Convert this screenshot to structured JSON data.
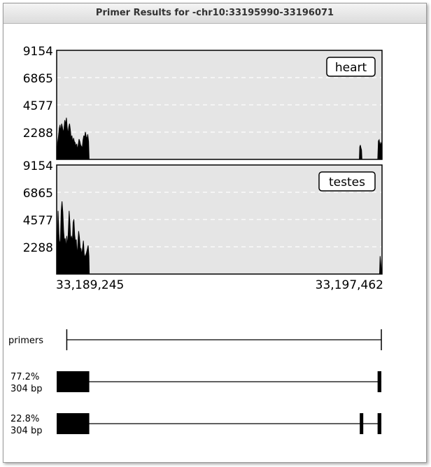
{
  "window": {
    "title": "Primer Results for -chr10:33195990-33196071"
  },
  "colors": {
    "panel_bg": "#e5e5e5",
    "fill": "#000000",
    "grid": "#ffffff"
  },
  "chart_data": {
    "type": "area",
    "panels": [
      {
        "label": "heart",
        "ylim": [
          0,
          9154
        ],
        "yticks": [
          "9154",
          "6865",
          "4577",
          "2288"
        ],
        "ytick_values": [
          9154,
          6865,
          4577,
          2288
        ],
        "clusters": [
          {
            "x": [
              33189245,
              33189270,
              33189290,
              33189310,
              33189330,
              33189350,
              33189370,
              33189390,
              33189410,
              33189430,
              33189450,
              33189470,
              33189490,
              33189510,
              33189530,
              33189550,
              33189570,
              33189590,
              33189610,
              33189630,
              33189650,
              33189670,
              33189690,
              33189710,
              33189730,
              33189750,
              33189770,
              33189790,
              33189810,
              33189830,
              33189850,
              33189870,
              33189890,
              33189910,
              33189930,
              33189950,
              33189970,
              33189990,
              33190010,
              33190030,
              33190050,
              33190065
            ],
            "y": [
              0,
              1400,
              1900,
              2600,
              2900,
              2300,
              3000,
              2700,
              2200,
              2600,
              3300,
              2900,
              3500,
              2700,
              2100,
              2700,
              3000,
              2500,
              1700,
              2000,
              1400,
              1800,
              1500,
              1400,
              1100,
              1300,
              800,
              1200,
              1700,
              1500,
              1200,
              1100,
              900,
              1600,
              2000,
              1800,
              2300,
              1900,
              1700,
              2100,
              1500,
              0
            ]
          },
          {
            "x": [
              33196890,
              33196900,
              33196915,
              33196930,
              33196945,
              33196955
            ],
            "y": [
              0,
              1050,
              1200,
              950,
              800,
              0
            ]
          },
          {
            "x": [
              33197355,
              33197370,
              33197390,
              33197410,
              33197430,
              33197445,
              33197462
            ],
            "y": [
              0,
              1550,
              1650,
              1100,
              1400,
              1300,
              0
            ]
          }
        ]
      },
      {
        "label": "testes",
        "ylim": [
          0,
          9154
        ],
        "yticks": [
          "9154",
          "6865",
          "4577",
          "2288"
        ],
        "ytick_values": [
          9154,
          6865,
          4577,
          2288
        ],
        "clusters": [
          {
            "x": [
              33189245,
              33189260,
              33189280,
              33189300,
              33189320,
              33189340,
              33189360,
              33189380,
              33189400,
              33189420,
              33189440,
              33189460,
              33189480,
              33189500,
              33189520,
              33189540,
              33189560,
              33189580,
              33189600,
              33189620,
              33189640,
              33189660,
              33189680,
              33189700,
              33189720,
              33189740,
              33189760,
              33189780,
              33189800,
              33189820,
              33189840,
              33189860,
              33189880,
              33189900,
              33189920,
              33189940,
              33189960,
              33189980,
              33190000,
              33190020,
              33190040,
              33190060,
              33190068
            ],
            "y": [
              0,
              2500,
              5300,
              3400,
              2500,
              2800,
              5300,
              6100,
              5200,
              3600,
              2800,
              3000,
              2100,
              3200,
              2300,
              3600,
              5300,
              4200,
              2700,
              3200,
              2600,
              4300,
              4600,
              3300,
              2700,
              2900,
              1500,
              2500,
              3600,
              3100,
              2200,
              2100,
              1600,
              2200,
              2800,
              1700,
              1400,
              1600,
              1800,
              2100,
              2400,
              1500,
              0
            ]
          },
          {
            "x": [
              33197400,
              33197415,
              33197430,
              33197445,
              33197462
            ],
            "y": [
              0,
              1500,
              900,
              400,
              0
            ]
          }
        ]
      }
    ],
    "x_range": [
      33189245,
      33197462
    ],
    "x_tick_labels": [
      "33,189,245",
      "33,197,462"
    ]
  },
  "tracks": [
    {
      "label": "primers",
      "type": "primers",
      "positions": [
        33189500,
        33197445
      ]
    },
    {
      "label_pct": "77.2%",
      "label_size": "304 bp",
      "type": "exons",
      "exons": [
        [
          33189245,
          33190068
        ],
        [
          33197350,
          33197445
        ]
      ]
    },
    {
      "label_pct": "22.8%",
      "label_size": "304 bp",
      "type": "exons",
      "exons": [
        [
          33189245,
          33190068
        ],
        [
          33196900,
          33196945
        ],
        [
          33197350,
          33197445
        ]
      ]
    }
  ]
}
